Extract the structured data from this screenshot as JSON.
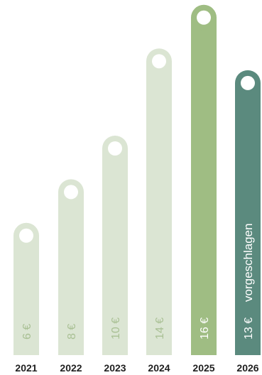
{
  "chart_data": {
    "type": "bar",
    "categories": [
      "2021",
      "2022",
      "2023",
      "2024",
      "2025",
      "2026"
    ],
    "values": [
      6,
      8,
      10,
      14,
      16,
      13
    ],
    "data_labels": [
      "6 €",
      "8 €",
      "10 €",
      "14 €",
      "16 €",
      "13 €"
    ],
    "annotations": [
      {
        "category": "2026",
        "text": "vorgeschlagen"
      }
    ],
    "title": "",
    "xlabel": "",
    "ylabel": "",
    "ylim": [
      0,
      16
    ],
    "grid": false,
    "legend": "none",
    "colors": {
      "default_bar": "#dbe5d3",
      "highlight_bar": "#9fbd83",
      "proposed_bar": "#5b8a7e",
      "dot": "#ffffff",
      "label_on_light": "#ffffff",
      "axis_text": "#1f1f1f"
    },
    "bar_styles": [
      "default",
      "default",
      "default",
      "default",
      "highlight",
      "proposed"
    ]
  }
}
